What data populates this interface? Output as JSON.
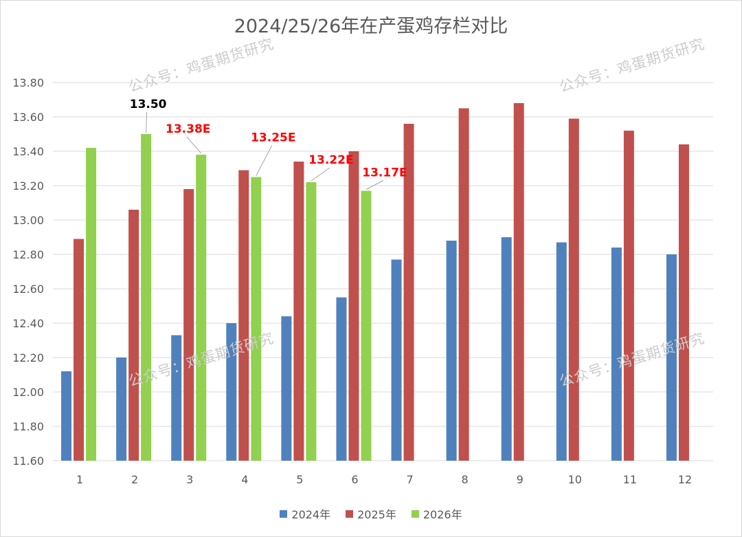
{
  "chart_data": {
    "type": "bar",
    "title": "2024/25/26年在产蛋鸡存栏对比",
    "categories": [
      "1",
      "2",
      "3",
      "4",
      "5",
      "6",
      "7",
      "8",
      "9",
      "10",
      "11",
      "12"
    ],
    "ylim": [
      11.6,
      13.8
    ],
    "yticks": [
      "11.60",
      "11.80",
      "12.00",
      "12.20",
      "12.40",
      "12.60",
      "12.80",
      "13.00",
      "13.20",
      "13.40",
      "13.60",
      "13.80"
    ],
    "grid": true,
    "legend_position": "bottom",
    "series": [
      {
        "name": "2024年",
        "color": "#4f81bd",
        "values": [
          12.12,
          12.2,
          12.33,
          12.4,
          12.44,
          12.55,
          12.77,
          12.88,
          12.9,
          12.87,
          12.84,
          12.8
        ]
      },
      {
        "name": "2025年",
        "color": "#c0504d",
        "values": [
          12.89,
          13.06,
          13.18,
          13.29,
          13.34,
          13.4,
          13.56,
          13.65,
          13.68,
          13.59,
          13.52,
          13.44
        ]
      },
      {
        "name": "2026年",
        "color": "#92d050",
        "values": [
          13.42,
          13.5,
          13.38,
          13.25,
          13.22,
          13.17,
          null,
          null,
          null,
          null,
          null,
          null
        ]
      }
    ],
    "annotations": [
      {
        "series": 2,
        "index": 1,
        "text": "13.50",
        "color": "#000000"
      },
      {
        "series": 2,
        "index": 2,
        "text": "13.38E",
        "color": "#ff0000"
      },
      {
        "series": 2,
        "index": 3,
        "text": "13.25E",
        "color": "#ff0000"
      },
      {
        "series": 2,
        "index": 4,
        "text": "13.22E",
        "color": "#ff0000"
      },
      {
        "series": 2,
        "index": 5,
        "text": "13.17E",
        "color": "#ff0000"
      }
    ]
  },
  "watermark": "公众号：鸡蛋期货研究"
}
